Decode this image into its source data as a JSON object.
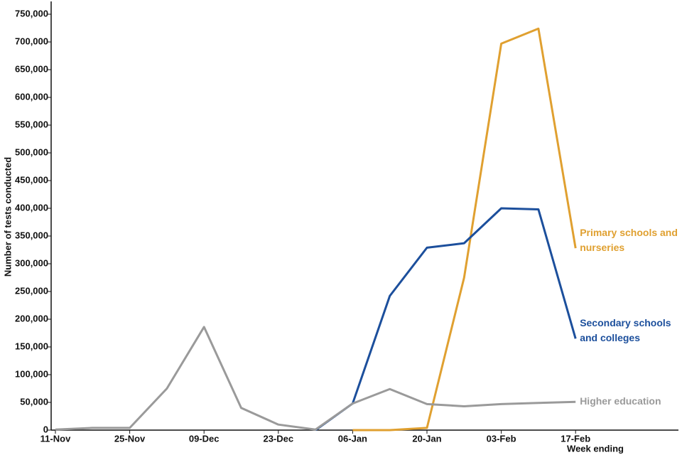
{
  "chart_data": {
    "type": "line",
    "ylabel": "Number of tests conducted",
    "xlabel": "Week ending",
    "categories": [
      "11-Nov",
      null,
      "25-Nov",
      null,
      "09-Dec",
      null,
      "23-Dec",
      null,
      "06-Jan",
      null,
      "20-Jan",
      null,
      "03-Feb",
      null,
      "17-Feb"
    ],
    "series": [
      {
        "name": "Primary schools and nurseries",
        "color": "#e0a030",
        "values": [
          null,
          null,
          null,
          null,
          null,
          null,
          null,
          null,
          0,
          0,
          4000,
          275000,
          697000,
          724000,
          328000
        ]
      },
      {
        "name": "Secondary schools and colleges",
        "color": "#1c4f9c",
        "values": [
          null,
          null,
          null,
          null,
          null,
          null,
          null,
          0,
          48000,
          242000,
          329000,
          337000,
          400000,
          398000,
          165000
        ]
      },
      {
        "name": "Higher education",
        "color": "#9a9a9a",
        "values": [
          1000,
          4000,
          4000,
          75000,
          186000,
          40000,
          10000,
          1000,
          48000,
          74000,
          47000,
          43000,
          47000,
          49000,
          51000
        ]
      }
    ],
    "ylim": [
      0,
      750000
    ],
    "yticks": [
      0,
      {
        "value": 50000,
        "label": "50,000"
      },
      {
        "value": 100000,
        "label": "100,000"
      },
      {
        "value": 150000,
        "label": "150,000"
      },
      {
        "value": 200000,
        "label": "200,000"
      },
      {
        "value": 250000,
        "label": "250,000"
      },
      {
        "value": 300000,
        "label": "300,000"
      },
      {
        "value": 350000,
        "label": "350,000"
      },
      {
        "value": 400000,
        "label": "400,000"
      },
      {
        "value": 450000,
        "label": "450,000"
      },
      {
        "value": 500000,
        "label": "500,000"
      },
      {
        "value": 550000,
        "label": "550,000"
      },
      {
        "value": 600000,
        "label": "600,000"
      },
      {
        "value": 650000,
        "label": "650,000"
      },
      {
        "value": 700000,
        "label": "700,000"
      },
      {
        "value": {
          "value": 750000,
          "label": "750,000"
        },
        "label": "750,000"
      }
    ]
  }
}
